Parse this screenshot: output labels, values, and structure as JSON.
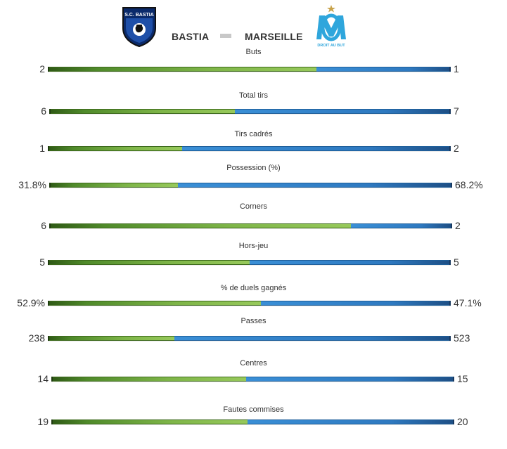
{
  "header": {
    "home_team": "BASTIA",
    "away_team": "MARSEILLE",
    "home_crest_icon": "sc-bastia-crest",
    "away_crest_icon": "om-crest",
    "home_crest_text": "S.C. BASTIA",
    "away_crest_text": "DROIT AU BUT"
  },
  "colors": {
    "home": "#7eb548",
    "away": "#2e79c0"
  },
  "stats": [
    {
      "label": "Buts",
      "home": "2",
      "away": "1",
      "home_share": 0.667
    },
    {
      "label": "Total tirs",
      "home": "6",
      "away": "7",
      "home_share": 0.462
    },
    {
      "label": "Tirs cadrés",
      "home": "1",
      "away": "2",
      "home_share": 0.333
    },
    {
      "label": "Possession (%)",
      "home": "31.8%",
      "away": "68.2%",
      "home_share": 0.318
    },
    {
      "label": "Corners",
      "home": "6",
      "away": "2",
      "home_share": 0.75
    },
    {
      "label": "Hors-jeu",
      "home": "5",
      "away": "5",
      "home_share": 0.5
    },
    {
      "label": "% de duels gagnés",
      "home": "52.9%",
      "away": "47.1%",
      "home_share": 0.529
    },
    {
      "label": "Passes",
      "home": "238",
      "away": "523",
      "home_share": 0.313
    },
    {
      "label": "Centres",
      "home": "14",
      "away": "15",
      "home_share": 0.483
    },
    {
      "label": "Fautes commises",
      "home": "19",
      "away": "20",
      "home_share": 0.487
    }
  ]
}
